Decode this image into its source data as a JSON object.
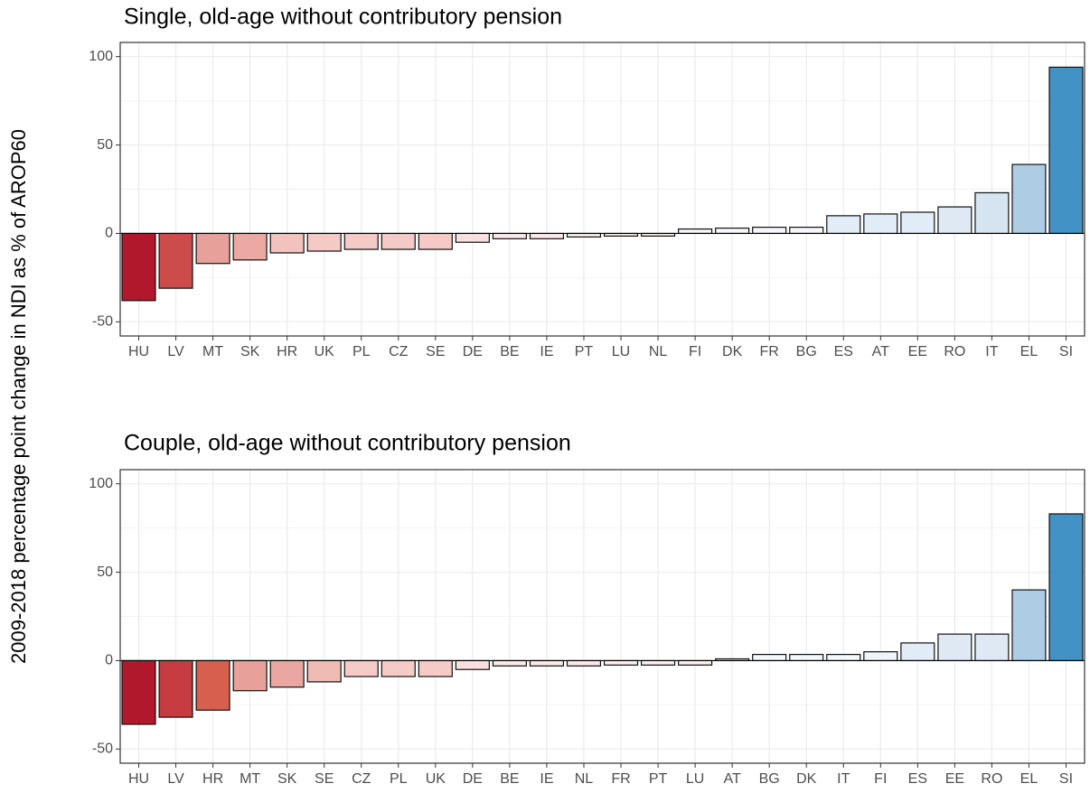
{
  "y_label": "2009-2018 percentage point change in NDI as % of AROP60",
  "chart_data": [
    {
      "type": "bar",
      "title": "Single, old-age without contributory pension",
      "categories": [
        "HU",
        "LV",
        "MT",
        "SK",
        "HR",
        "UK",
        "PL",
        "CZ",
        "SE",
        "DE",
        "BE",
        "IE",
        "PT",
        "LU",
        "NL",
        "FI",
        "DK",
        "FR",
        "BG",
        "ES",
        "AT",
        "EE",
        "RO",
        "IT",
        "EL",
        "SI"
      ],
      "values": [
        -38,
        -31,
        -17,
        -15,
        -11,
        -10,
        -9,
        -9,
        -9,
        -5,
        -3,
        -3,
        -2,
        -1.5,
        -1.5,
        2.5,
        3,
        3.5,
        3.5,
        10,
        11,
        12,
        15,
        23,
        39,
        94
      ],
      "colors": [
        "#b2182b",
        "#cc4c4c",
        "#e8a09a",
        "#eca9a3",
        "#f2c2bd",
        "#f5c9c5",
        "#f5c9c5",
        "#f5c9c5",
        "#f5c9c5",
        "#f9e0de",
        "#fbe9e7",
        "#fbe9e7",
        "#fdf0ee",
        "#fdf0ee",
        "#fdf0ee",
        "#f4f7fb",
        "#f4f7fb",
        "#f4f7fb",
        "#f4f7fb",
        "#e2ecf6",
        "#e2ecf6",
        "#e2ecf6",
        "#dfe9f4",
        "#d6e4f1",
        "#aecde5",
        "#4292c6"
      ],
      "ylim": [
        -58,
        108
      ],
      "yticks": [
        -50,
        0,
        50,
        100
      ],
      "grid": true
    },
    {
      "type": "bar",
      "title": "Couple, old-age without contributory pension",
      "categories": [
        "HU",
        "LV",
        "HR",
        "MT",
        "SK",
        "SE",
        "CZ",
        "PL",
        "UK",
        "DE",
        "BE",
        "IE",
        "NL",
        "FR",
        "PT",
        "LU",
        "AT",
        "BG",
        "DK",
        "IT",
        "FI",
        "ES",
        "EE",
        "RO",
        "EL",
        "SI"
      ],
      "values": [
        -36,
        -32,
        -28,
        -17,
        -15,
        -12,
        -9,
        -9,
        -9,
        -5,
        -3,
        -3,
        -3,
        -2.5,
        -2.5,
        -2.5,
        1,
        3.5,
        3.5,
        3.5,
        5,
        10,
        15,
        15,
        40,
        83
      ],
      "colors": [
        "#b2182b",
        "#c73c40",
        "#d6604d",
        "#e8a09a",
        "#eaa6a0",
        "#f0bbb5",
        "#f5cbc7",
        "#f5cbc7",
        "#f5cbc7",
        "#f9e0de",
        "#fbe9e7",
        "#fbe9e7",
        "#fbe9e7",
        "#fdf0ee",
        "#fdf0ee",
        "#fdf0ee",
        "#fdf5f4",
        "#f4f7fb",
        "#f4f7fb",
        "#f4f7fb",
        "#f0f5fa",
        "#e2ecf6",
        "#dfe9f4",
        "#dfe9f4",
        "#aecde5",
        "#4292c6"
      ],
      "ylim": [
        -58,
        108
      ],
      "yticks": [
        -50,
        0,
        50,
        100
      ],
      "grid": true
    }
  ]
}
